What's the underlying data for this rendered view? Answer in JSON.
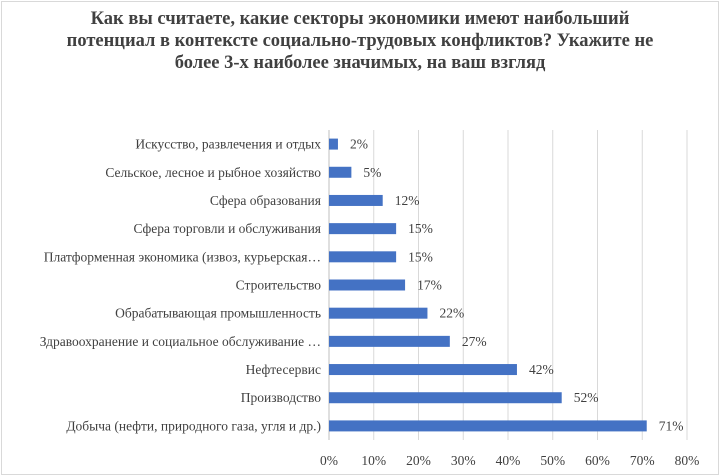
{
  "chart_data": {
    "type": "bar",
    "orientation": "horizontal",
    "title": "Как вы считаете, какие секторы экономики имеют наибольший  потенциал в контексте социально-трудовых конфликтов? Укажите не более 3-х наиболее значимых, на ваш взгляд",
    "categories": [
      "Искусство, развлечения и отдых",
      "Сельское, лесное и рыбное хозяйство",
      "Сфера образования",
      "Сфера торговли и обслуживания",
      "Платформенная экономика (извоз, курьерская…",
      "Строительство",
      "Обрабатывающая промышленность",
      "Здравоохранение и социальное обслуживание …",
      "Нефтесервис",
      "Производство",
      "Добыча (нефти, природного газа, угля и др.)"
    ],
    "values": [
      2,
      5,
      12,
      15,
      15,
      17,
      22,
      27,
      42,
      52,
      71
    ],
    "data_labels": [
      "2%",
      "5%",
      "12%",
      "15%",
      "15%",
      "17%",
      "22%",
      "27%",
      "42%",
      "52%",
      "71%"
    ],
    "xlim": [
      0,
      80
    ],
    "x_ticks": [
      "0%",
      "10%",
      "20%",
      "30%",
      "40%",
      "50%",
      "60%",
      "70%",
      "80%"
    ],
    "grid": "vertical",
    "legend": "none",
    "bar_color": "#4472c4"
  }
}
